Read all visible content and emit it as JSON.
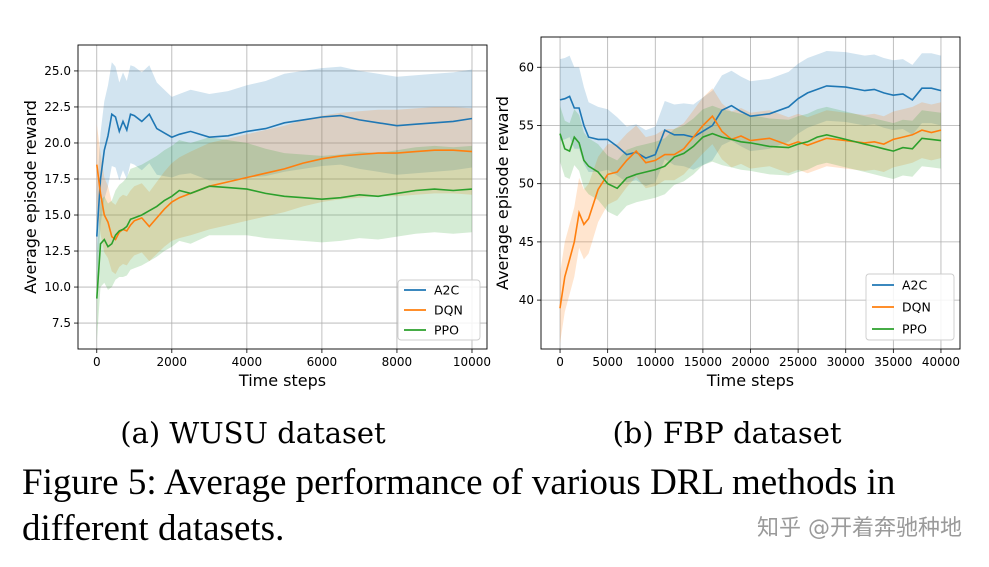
{
  "chart_data": [
    {
      "type": "line",
      "panel": "a",
      "caption": "(a) WUSU dataset",
      "xlabel": "Time steps",
      "ylabel": "Average episode reward",
      "xlim": [
        -500,
        10400
      ],
      "ylim": [
        5.7,
        26.8
      ],
      "xticks": [
        0,
        2000,
        4000,
        6000,
        8000,
        10000
      ],
      "xtick_labels": [
        "0",
        "2000",
        "4000",
        "6000",
        "8000",
        "10000"
      ],
      "yticks": [
        7.5,
        10.0,
        12.5,
        15.0,
        17.5,
        20.0,
        22.5,
        25.0
      ],
      "ytick_labels": [
        "7.5",
        "10.0",
        "12.5",
        "15.0",
        "17.5",
        "20.0",
        "22.5",
        "25.0"
      ],
      "grid": true,
      "legend_position": "bottom-right",
      "series": [
        {
          "name": "A2C",
          "color": "#1f77b4",
          "x": [
            0,
            100,
            200,
            300,
            400,
            500,
            600,
            700,
            800,
            900,
            1000,
            1200,
            1400,
            1600,
            1800,
            2000,
            2200,
            2500,
            3000,
            3500,
            4000,
            4500,
            5000,
            5500,
            6000,
            6500,
            7000,
            7500,
            8000,
            8500,
            9000,
            9500,
            10000
          ],
          "y": [
            13.5,
            17.5,
            19.5,
            20.5,
            22.0,
            21.8,
            20.8,
            21.5,
            20.9,
            22.0,
            21.9,
            21.5,
            22.0,
            21.0,
            20.7,
            20.4,
            20.6,
            20.8,
            20.4,
            20.5,
            20.8,
            21.0,
            21.4,
            21.6,
            21.8,
            21.9,
            21.6,
            21.4,
            21.2,
            21.3,
            21.4,
            21.5,
            21.7
          ],
          "band": [
            3.2,
            3.2,
            3.4,
            3.5,
            3.6,
            3.5,
            3.4,
            3.4,
            3.4,
            3.4,
            3.4,
            3.4,
            3.4,
            3.2,
            3.0,
            2.8,
            2.8,
            2.9,
            3.0,
            3.1,
            3.2,
            3.3,
            3.4,
            3.4,
            3.4,
            3.4,
            3.4,
            3.4,
            3.4,
            3.4,
            3.4,
            3.4,
            3.4
          ]
        },
        {
          "name": "DQN",
          "color": "#ff7f0e",
          "x": [
            0,
            100,
            200,
            300,
            400,
            500,
            600,
            700,
            800,
            900,
            1000,
            1200,
            1400,
            1600,
            1800,
            2000,
            2200,
            2500,
            3000,
            3500,
            4000,
            4500,
            5000,
            5500,
            6000,
            6500,
            7000,
            7500,
            8000,
            8500,
            9000,
            9500,
            10000
          ],
          "y": [
            18.5,
            16.5,
            15.0,
            14.5,
            13.5,
            13.3,
            13.8,
            14.0,
            13.9,
            14.3,
            14.6,
            14.8,
            14.2,
            14.8,
            15.4,
            15.9,
            16.2,
            16.5,
            17.0,
            17.3,
            17.6,
            17.9,
            18.2,
            18.6,
            18.9,
            19.1,
            19.2,
            19.3,
            19.3,
            19.4,
            19.5,
            19.5,
            19.4
          ],
          "band": [
            2.8,
            2.8,
            2.6,
            2.5,
            2.4,
            2.4,
            2.4,
            2.4,
            2.4,
            2.4,
            2.4,
            2.4,
            2.4,
            2.5,
            2.6,
            2.7,
            2.8,
            2.9,
            3.0,
            3.0,
            3.0,
            3.0,
            3.0,
            3.0,
            3.0,
            3.0,
            3.0,
            3.0,
            3.0,
            3.0,
            3.0,
            3.0,
            3.0
          ]
        },
        {
          "name": "PPO",
          "color": "#2ca02c",
          "x": [
            0,
            100,
            200,
            300,
            400,
            500,
            600,
            700,
            800,
            900,
            1000,
            1200,
            1400,
            1600,
            1800,
            2000,
            2200,
            2500,
            3000,
            3500,
            4000,
            4500,
            5000,
            5500,
            6000,
            6500,
            7000,
            7500,
            8000,
            8500,
            9000,
            9500,
            10000
          ],
          "y": [
            9.2,
            13.0,
            13.3,
            12.8,
            13.0,
            13.6,
            13.9,
            14.0,
            14.2,
            14.7,
            14.8,
            15.0,
            15.3,
            15.6,
            16.0,
            16.3,
            16.7,
            16.5,
            17.0,
            16.9,
            16.8,
            16.5,
            16.3,
            16.2,
            16.1,
            16.2,
            16.4,
            16.3,
            16.5,
            16.7,
            16.8,
            16.7,
            16.8
          ],
          "band": [
            3.0,
            3.0,
            3.0,
            3.0,
            3.0,
            3.1,
            3.2,
            3.3,
            3.4,
            3.5,
            3.5,
            3.5,
            3.5,
            3.5,
            3.5,
            3.5,
            3.5,
            3.5,
            3.4,
            3.3,
            3.2,
            3.1,
            3.0,
            3.0,
            3.0,
            3.0,
            3.0,
            3.0,
            3.0,
            3.0,
            3.0,
            3.0,
            3.0
          ]
        }
      ]
    },
    {
      "type": "line",
      "panel": "b",
      "caption": "(b) FBP dataset",
      "xlabel": "Time steps",
      "ylabel": "Average episode reward",
      "xlim": [
        -2000,
        42000
      ],
      "ylim": [
        35.8,
        62.6
      ],
      "xticks": [
        0,
        5000,
        10000,
        15000,
        20000,
        25000,
        30000,
        35000,
        40000
      ],
      "xtick_labels": [
        "0",
        "5000",
        "10000",
        "15000",
        "20000",
        "25000",
        "30000",
        "35000",
        "40000"
      ],
      "yticks": [
        40,
        45,
        50,
        55,
        60
      ],
      "ytick_labels": [
        "40",
        "45",
        "50",
        "55",
        "60"
      ],
      "grid": true,
      "legend_position": "bottom-right",
      "series": [
        {
          "name": "A2C",
          "color": "#1f77b4",
          "x": [
            0,
            500,
            1000,
            1500,
            2000,
            2500,
            3000,
            4000,
            5000,
            6000,
            7000,
            8000,
            9000,
            10000,
            11000,
            12000,
            13000,
            14000,
            15000,
            16000,
            17000,
            18000,
            19000,
            20000,
            22000,
            24000,
            25000,
            26000,
            27000,
            28000,
            30000,
            32000,
            33000,
            34000,
            35000,
            36000,
            37000,
            38000,
            39000,
            40000
          ],
          "y": [
            57.2,
            57.3,
            57.5,
            56.5,
            56.5,
            55.0,
            54.0,
            53.8,
            53.8,
            53.2,
            52.5,
            52.7,
            52.2,
            52.5,
            54.6,
            54.2,
            54.2,
            54.0,
            54.5,
            55.0,
            56.3,
            56.7,
            56.2,
            55.8,
            56.0,
            56.6,
            57.3,
            57.8,
            58.1,
            58.4,
            58.3,
            58.0,
            58.1,
            57.8,
            57.6,
            57.7,
            57.2,
            58.2,
            58.2,
            58.0
          ],
          "band": [
            3.5,
            3.5,
            3.5,
            3.5,
            3.5,
            3.3,
            3.0,
            2.8,
            2.6,
            2.5,
            2.4,
            2.4,
            2.4,
            2.4,
            2.5,
            2.6,
            2.7,
            2.8,
            2.9,
            3.0,
            3.0,
            3.0,
            3.0,
            3.0,
            3.0,
            3.0,
            3.0,
            3.0,
            3.0,
            3.0,
            3.0,
            3.0,
            3.0,
            3.0,
            3.0,
            3.0,
            3.0,
            3.0,
            3.0,
            3.0
          ]
        },
        {
          "name": "DQN",
          "color": "#ff7f0e",
          "x": [
            0,
            500,
            1000,
            1500,
            2000,
            2500,
            3000,
            4000,
            5000,
            6000,
            7000,
            8000,
            9000,
            10000,
            11000,
            12000,
            13000,
            14000,
            15000,
            16000,
            17000,
            18000,
            19000,
            20000,
            22000,
            24000,
            25000,
            26000,
            27000,
            28000,
            30000,
            32000,
            33000,
            34000,
            35000,
            36000,
            37000,
            38000,
            39000,
            40000
          ],
          "y": [
            39.3,
            42.0,
            43.5,
            45.0,
            47.5,
            46.5,
            47.0,
            49.5,
            50.8,
            51.0,
            52.0,
            52.8,
            51.8,
            52.0,
            52.5,
            52.5,
            53.0,
            54.0,
            55.0,
            55.8,
            54.5,
            53.8,
            54.1,
            53.7,
            53.9,
            53.3,
            53.6,
            53.3,
            53.6,
            53.9,
            53.7,
            53.5,
            53.6,
            53.4,
            53.8,
            54.0,
            54.2,
            54.6,
            54.4,
            54.6
          ],
          "band": [
            3.0,
            3.0,
            3.0,
            3.0,
            3.0,
            3.0,
            3.0,
            2.8,
            2.6,
            2.4,
            2.3,
            2.2,
            2.2,
            2.2,
            2.2,
            2.2,
            2.2,
            2.3,
            2.4,
            2.4,
            2.4,
            2.4,
            2.4,
            2.4,
            2.4,
            2.4,
            2.4,
            2.4,
            2.4,
            2.4,
            2.4,
            2.4,
            2.4,
            2.4,
            2.4,
            2.4,
            2.4,
            2.4,
            2.4,
            2.4
          ]
        },
        {
          "name": "PPO",
          "color": "#2ca02c",
          "x": [
            0,
            500,
            1000,
            1500,
            2000,
            2500,
            3000,
            4000,
            5000,
            6000,
            7000,
            8000,
            9000,
            10000,
            11000,
            12000,
            13000,
            14000,
            15000,
            16000,
            17000,
            18000,
            19000,
            20000,
            22000,
            24000,
            25000,
            26000,
            27000,
            28000,
            30000,
            32000,
            33000,
            34000,
            35000,
            36000,
            37000,
            38000,
            39000,
            40000
          ],
          "y": [
            54.3,
            53.0,
            52.8,
            54.0,
            53.5,
            52.0,
            51.5,
            51.0,
            50.0,
            49.6,
            50.5,
            50.8,
            51.0,
            51.2,
            51.5,
            52.3,
            52.6,
            53.2,
            54.0,
            54.3,
            54.0,
            53.8,
            53.6,
            53.5,
            53.2,
            53.1,
            53.4,
            53.6,
            54.0,
            54.2,
            53.8,
            53.4,
            53.2,
            53.0,
            52.8,
            53.1,
            53.0,
            53.9,
            53.8,
            53.7
          ],
          "band": [
            2.4,
            2.4,
            2.4,
            2.4,
            2.4,
            2.4,
            2.4,
            2.4,
            2.4,
            2.4,
            2.4,
            2.4,
            2.4,
            2.4,
            2.4,
            2.4,
            2.4,
            2.4,
            2.4,
            2.4,
            2.4,
            2.4,
            2.4,
            2.4,
            2.4,
            2.4,
            2.4,
            2.4,
            2.4,
            2.4,
            2.4,
            2.4,
            2.4,
            2.4,
            2.4,
            2.4,
            2.4,
            2.4,
            2.4,
            2.4
          ]
        }
      ]
    }
  ],
  "figure_caption_line1": "Figure 5: Average performance of various DRL methods in",
  "figure_caption_line2": "different datasets.",
  "watermark": "知乎 @开着奔驰种地"
}
